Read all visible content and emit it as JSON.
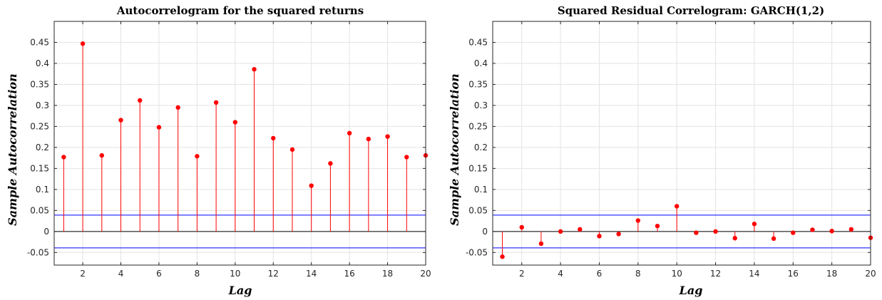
{
  "chart_data": [
    {
      "type": "stem",
      "title": "Autocorrelogram for the squared returns",
      "xlabel": "Lag",
      "ylabel": "Sample Autocorrelation",
      "xlim": [
        0.5,
        20
      ],
      "ylim": [
        -0.08,
        0.5
      ],
      "xticks": [
        2,
        4,
        6,
        8,
        10,
        12,
        14,
        16,
        18,
        20
      ],
      "yticks": [
        -0.05,
        0,
        0.05,
        0.1,
        0.15,
        0.2,
        0.25,
        0.3,
        0.35,
        0.4,
        0.45
      ],
      "ytick_labels": [
        "-0.05",
        "0",
        "0.05",
        "0.1",
        "0.15",
        "0.2",
        "0.25",
        "0.3",
        "0.35",
        "0.4",
        "0.45"
      ],
      "grid": true,
      "lags": [
        1,
        2,
        3,
        4,
        5,
        6,
        7,
        8,
        9,
        10,
        11,
        12,
        13,
        14,
        15,
        16,
        17,
        18,
        19,
        20
      ],
      "values": [
        0.177,
        0.447,
        0.181,
        0.265,
        0.312,
        0.248,
        0.295,
        0.179,
        0.307,
        0.26,
        0.386,
        0.222,
        0.195,
        0.109,
        0.162,
        0.234,
        0.22,
        0.226,
        0.177,
        0.181
      ],
      "bounds": [
        0.039,
        -0.039
      ],
      "stem_color": "#ff0000",
      "bound_color": "#0000ff",
      "zero_line_color": "#000000"
    },
    {
      "type": "stem",
      "title": "Squared Residual Correlogram: GARCH(1,2)",
      "xlabel": "Lag",
      "ylabel": "Sample Autocorrelation",
      "xlim": [
        0.5,
        20
      ],
      "ylim": [
        -0.08,
        0.5
      ],
      "xticks": [
        2,
        4,
        6,
        8,
        10,
        12,
        14,
        16,
        18,
        20
      ],
      "yticks": [
        -0.05,
        0,
        0.05,
        0.1,
        0.15,
        0.2,
        0.25,
        0.3,
        0.35,
        0.4,
        0.45
      ],
      "ytick_labels": [
        "-0.05",
        "0",
        "0.05",
        "0.1",
        "0.15",
        "0.2",
        "0.25",
        "0.3",
        "0.35",
        "0.4",
        "0.45"
      ],
      "grid": true,
      "lags": [
        1,
        2,
        3,
        4,
        5,
        6,
        7,
        8,
        9,
        10,
        11,
        12,
        13,
        14,
        15,
        16,
        17,
        18,
        19,
        20
      ],
      "values": [
        -0.06,
        0.01,
        -0.029,
        0.0,
        0.005,
        -0.011,
        -0.006,
        0.026,
        0.013,
        0.06,
        -0.003,
        0.0,
        -0.016,
        0.018,
        -0.017,
        -0.003,
        0.004,
        0.001,
        0.005,
        -0.015
      ],
      "bounds": [
        0.039,
        -0.039
      ],
      "stem_color": "#ff0000",
      "bound_color": "#0000ff",
      "zero_line_color": "#000000"
    }
  ]
}
